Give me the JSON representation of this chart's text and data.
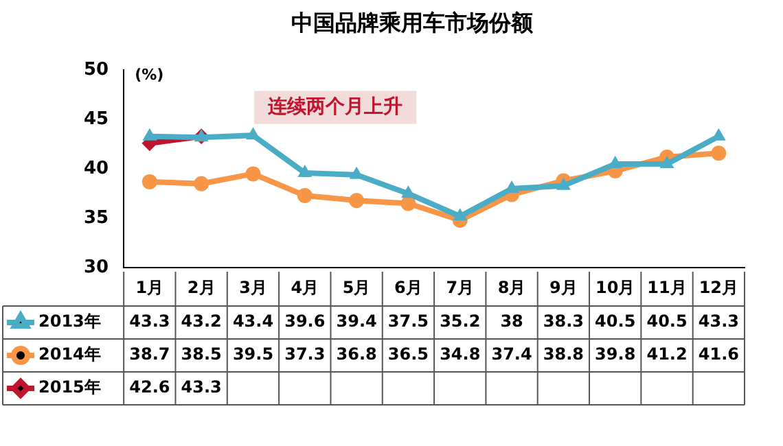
{
  "chart_data": {
    "type": "line",
    "title": "中国品牌乘用车市场份额",
    "ylabel": "(%)",
    "categories": [
      "1月",
      "2月",
      "3月",
      "4月",
      "5月",
      "6月",
      "7月",
      "8月",
      "9月",
      "10月",
      "11月",
      "12月"
    ],
    "series": [
      {
        "name": "2013年",
        "color": "#4bacc6",
        "marker": "triangle",
        "values": [
          43.3,
          43.2,
          43.4,
          39.6,
          39.4,
          37.5,
          35.2,
          38,
          38.3,
          40.5,
          40.5,
          43.3
        ]
      },
      {
        "name": "2014年",
        "color": "#f79646",
        "marker": "circle",
        "values": [
          38.7,
          38.5,
          39.5,
          37.3,
          36.8,
          36.5,
          34.8,
          37.4,
          38.8,
          39.8,
          41.2,
          41.6
        ]
      },
      {
        "name": "2015年",
        "color": "#c0152f",
        "marker": "diamond",
        "values": [
          42.6,
          43.3,
          null,
          null,
          null,
          null,
          null,
          null,
          null,
          null,
          null,
          null
        ]
      }
    ],
    "ylim": [
      30,
      50
    ],
    "yticks": [
      30,
      35,
      40,
      45,
      50
    ],
    "grid": false,
    "legend": "bottom left",
    "data_labels": true,
    "annotations": [
      "连续两个月上升"
    ]
  }
}
